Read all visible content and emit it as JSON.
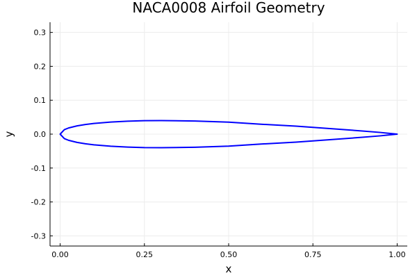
{
  "chart_data": {
    "type": "line",
    "title": "NACA0008 Airfoil Geometry",
    "xlabel": "x",
    "ylabel": "y",
    "xlim": [
      -0.03,
      1.03
    ],
    "ylim": [
      -0.33,
      0.33
    ],
    "xticks": [
      0.0,
      0.25,
      0.5,
      0.75,
      1.0
    ],
    "xtick_labels": [
      "0.00",
      "0.25",
      "0.50",
      "0.75",
      "1.00"
    ],
    "yticks": [
      -0.3,
      -0.2,
      -0.1,
      0.0,
      0.1,
      0.2,
      0.3
    ],
    "ytick_labels": [
      "-0.3",
      "-0.2",
      "-0.1",
      "0.0",
      "0.1",
      "0.2",
      "0.3"
    ],
    "grid": true,
    "legend": "none",
    "series_color": "#0000ff",
    "series": [
      {
        "x": [
          1.0,
          0.95,
          0.9,
          0.8,
          0.7,
          0.6,
          0.5,
          0.4,
          0.3,
          0.25,
          0.2,
          0.15,
          0.1,
          0.075,
          0.05,
          0.025,
          0.0125,
          0.0,
          0.0125,
          0.025,
          0.05,
          0.075,
          0.1,
          0.15,
          0.2,
          0.25,
          0.3,
          0.4,
          0.5,
          0.6,
          0.7,
          0.8,
          0.9,
          0.95,
          1.0
        ],
        "y": [
          0.0,
          0.005,
          0.009,
          0.0165,
          0.0235,
          0.029,
          0.0353,
          0.0386,
          0.04,
          0.0397,
          0.0382,
          0.0357,
          0.0315,
          0.0284,
          0.0243,
          0.0182,
          0.0131,
          0.0,
          -0.0131,
          -0.0182,
          -0.0243,
          -0.0284,
          -0.0315,
          -0.0357,
          -0.0382,
          -0.0397,
          -0.04,
          -0.0386,
          -0.0353,
          -0.029,
          -0.0235,
          -0.0165,
          -0.009,
          -0.005,
          0.0
        ]
      }
    ]
  }
}
